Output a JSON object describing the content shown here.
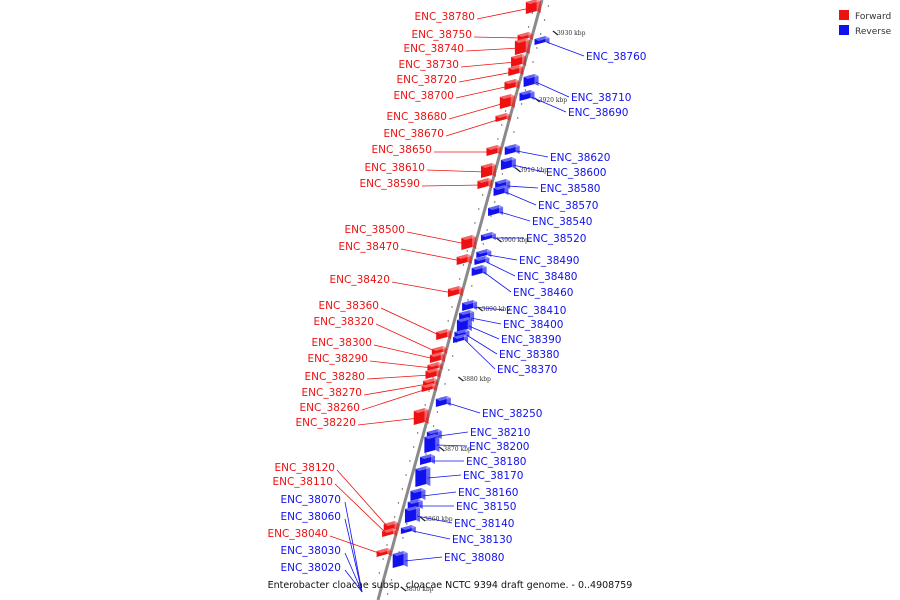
{
  "caption": "Enterobacter cloacae subsp. cloacae NCTC 9394 draft genome. - 0..4908759",
  "legend": [
    {
      "label": "Forward",
      "color": "#ee1111"
    },
    {
      "label": "Reverse",
      "color": "#1111ee"
    }
  ],
  "colors": {
    "forward": "#ee1111",
    "reverse": "#1111ee",
    "backbone": "#8a8a8a"
  },
  "ticks": [
    {
      "label": "3930 kbp",
      "pos": 3930
    },
    {
      "label": "3920 kbp",
      "pos": 3920
    },
    {
      "label": "3910 kbp",
      "pos": 3910
    },
    {
      "label": "3900 kbp",
      "pos": 3900
    },
    {
      "label": "3890 kbp",
      "pos": 3890
    },
    {
      "label": "3880 kbp",
      "pos": 3880
    },
    {
      "label": "3870 kbp",
      "pos": 3870
    },
    {
      "label": "3860 kbp",
      "pos": 3860
    },
    {
      "label": "3850 kbp",
      "pos": 3850
    }
  ],
  "forward_genes": [
    "ENC_38780",
    "ENC_38750",
    "ENC_38740",
    "ENC_38730",
    "ENC_38720",
    "ENC_38700",
    "ENC_38680",
    "ENC_38670",
    "ENC_38650",
    "ENC_38610",
    "ENC_38590",
    "ENC_38500",
    "ENC_38470",
    "ENC_38420",
    "ENC_38360",
    "ENC_38320",
    "ENC_38300",
    "ENC_38290",
    "ENC_38280",
    "ENC_38270",
    "ENC_38260",
    "ENC_38220",
    "ENC_38120",
    "ENC_38110",
    "ENC_38040"
  ],
  "reverse_genes": [
    "ENC_38760",
    "ENC_38710",
    "ENC_38690",
    "ENC_38620",
    "ENC_38600",
    "ENC_38580",
    "ENC_38570",
    "ENC_38540",
    "ENC_38520",
    "ENC_38490",
    "ENC_38480",
    "ENC_38460",
    "ENC_38410",
    "ENC_38400",
    "ENC_38390",
    "ENC_38380",
    "ENC_38370",
    "ENC_38250",
    "ENC_38210",
    "ENC_38200",
    "ENC_38180",
    "ENC_38170",
    "ENC_38160",
    "ENC_38150",
    "ENC_38140",
    "ENC_38130",
    "ENC_38080",
    "ENC_38070",
    "ENC_38060",
    "ENC_38030",
    "ENC_38020"
  ]
}
